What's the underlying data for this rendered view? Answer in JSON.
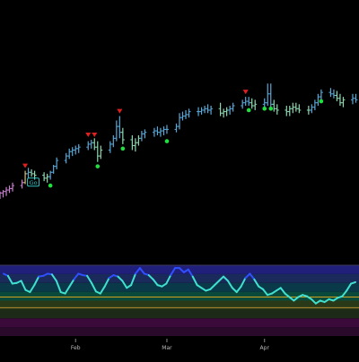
{
  "chart_data": [
    {
      "type": "ohlc",
      "title": "",
      "x_start": "2024-01-08",
      "x_end": "2024-05-01",
      "ylim": [
        0,
        100
      ],
      "y_axis_labels": "none",
      "grid": false,
      "bar_colors": {
        "up": "#5aa8d8",
        "down": "#8fd8b0",
        "weak": "#c880d0",
        "amber": "#d8c070"
      },
      "markers": {
        "sell_triangle_color": "#e02020",
        "buy_dot_color": "#20e040",
        "go_label": "Go",
        "go_label_color": "#30c0c0"
      },
      "series": [
        {
          "x": "2024-01-08",
          "o": 20,
          "h": 22,
          "l": 17,
          "c": 21,
          "color": "weak"
        },
        {
          "x": "2024-01-09",
          "o": 21,
          "h": 23,
          "l": 18,
          "c": 22,
          "color": "weak"
        },
        {
          "x": "2024-01-10",
          "o": 22,
          "h": 25,
          "l": 19,
          "c": 23,
          "color": "weak"
        },
        {
          "x": "2024-01-11",
          "o": 23,
          "h": 26,
          "l": 21,
          "c": 24,
          "color": "weak"
        },
        {
          "x": "2024-01-12",
          "o": 24,
          "h": 28,
          "l": 22,
          "c": 26,
          "color": "weak"
        },
        {
          "x": "2024-01-15",
          "o": 26,
          "h": 30,
          "l": 24,
          "c": 28,
          "color": "weak"
        },
        {
          "x": "2024-01-16",
          "o": 28,
          "h": 36,
          "l": 27,
          "c": 34,
          "color": "amber"
        },
        {
          "x": "2024-01-17",
          "o": 34,
          "h": 38,
          "l": 31,
          "c": 35,
          "color": "up"
        },
        {
          "x": "2024-01-18",
          "o": 35,
          "h": 37,
          "l": 32,
          "c": 34,
          "color": "down"
        },
        {
          "x": "2024-01-19",
          "o": 34,
          "h": 36,
          "l": 30,
          "c": 33,
          "color": "down"
        },
        {
          "x": "2024-01-22",
          "o": 33,
          "h": 35,
          "l": 29,
          "c": 31,
          "color": "down"
        },
        {
          "x": "2024-01-23",
          "o": 31,
          "h": 34,
          "l": 28,
          "c": 32,
          "color": "down"
        },
        {
          "x": "2024-01-24",
          "o": 32,
          "h": 36,
          "l": 30,
          "c": 35,
          "color": "up"
        },
        {
          "x": "2024-01-25",
          "o": 35,
          "h": 40,
          "l": 34,
          "c": 39,
          "color": "up"
        },
        {
          "x": "2024-01-26",
          "o": 39,
          "h": 45,
          "l": 37,
          "c": 43,
          "color": "up"
        },
        {
          "x": "2024-01-29",
          "o": 43,
          "h": 48,
          "l": 41,
          "c": 46,
          "color": "up"
        },
        {
          "x": "2024-01-30",
          "o": 46,
          "h": 51,
          "l": 44,
          "c": 49,
          "color": "up"
        },
        {
          "x": "2024-01-31",
          "o": 49,
          "h": 52,
          "l": 46,
          "c": 50,
          "color": "up"
        },
        {
          "x": "2024-02-01",
          "o": 50,
          "h": 53,
          "l": 47,
          "c": 51,
          "color": "up"
        },
        {
          "x": "2024-02-02",
          "o": 51,
          "h": 54,
          "l": 48,
          "c": 52,
          "color": "up"
        },
        {
          "x": "2024-02-05",
          "o": 52,
          "h": 56,
          "l": 50,
          "c": 54,
          "color": "up"
        },
        {
          "x": "2024-02-06",
          "o": 54,
          "h": 57,
          "l": 51,
          "c": 55,
          "color": "up"
        },
        {
          "x": "2024-02-07",
          "o": 55,
          "h": 58,
          "l": 50,
          "c": 52,
          "color": "down"
        },
        {
          "x": "2024-02-08",
          "o": 52,
          "h": 56,
          "l": 42,
          "c": 46,
          "color": "down"
        },
        {
          "x": "2024-02-09",
          "o": 46,
          "h": 53,
          "l": 44,
          "c": 50,
          "color": "down"
        },
        {
          "x": "2024-02-12",
          "o": 50,
          "h": 56,
          "l": 48,
          "c": 54,
          "color": "up"
        },
        {
          "x": "2024-02-13",
          "o": 54,
          "h": 60,
          "l": 52,
          "c": 58,
          "color": "up"
        },
        {
          "x": "2024-02-14",
          "o": 58,
          "h": 70,
          "l": 56,
          "c": 66,
          "color": "up"
        },
        {
          "x": "2024-02-15",
          "o": 66,
          "h": 73,
          "l": 58,
          "c": 62,
          "color": "up"
        },
        {
          "x": "2024-02-16",
          "o": 62,
          "h": 65,
          "l": 54,
          "c": 57,
          "color": "down"
        },
        {
          "x": "2024-02-19",
          "o": 57,
          "h": 60,
          "l": 50,
          "c": 53,
          "color": "down"
        },
        {
          "x": "2024-02-20",
          "o": 53,
          "h": 58,
          "l": 49,
          "c": 55,
          "color": "down"
        },
        {
          "x": "2024-02-21",
          "o": 55,
          "h": 60,
          "l": 53,
          "c": 58,
          "color": "down"
        },
        {
          "x": "2024-02-22",
          "o": 58,
          "h": 63,
          "l": 56,
          "c": 61,
          "color": "up"
        },
        {
          "x": "2024-02-23",
          "o": 61,
          "h": 64,
          "l": 58,
          "c": 62,
          "color": "up"
        },
        {
          "x": "2024-02-26",
          "o": 62,
          "h": 65,
          "l": 59,
          "c": 63,
          "color": "up"
        },
        {
          "x": "2024-02-27",
          "o": 63,
          "h": 66,
          "l": 60,
          "c": 62,
          "color": "up"
        },
        {
          "x": "2024-02-28",
          "o": 62,
          "h": 65,
          "l": 59,
          "c": 63,
          "color": "up"
        },
        {
          "x": "2024-02-29",
          "o": 63,
          "h": 66,
          "l": 60,
          "c": 64,
          "color": "up"
        },
        {
          "x": "2024-03-01",
          "o": 64,
          "h": 67,
          "l": 61,
          "c": 64,
          "color": "up"
        },
        {
          "x": "2024-03-04",
          "o": 64,
          "h": 68,
          "l": 62,
          "c": 66,
          "color": "up"
        },
        {
          "x": "2024-03-05",
          "o": 66,
          "h": 75,
          "l": 64,
          "c": 72,
          "color": "up"
        },
        {
          "x": "2024-03-06",
          "o": 72,
          "h": 76,
          "l": 70,
          "c": 73,
          "color": "up"
        },
        {
          "x": "2024-03-07",
          "o": 73,
          "h": 77,
          "l": 71,
          "c": 74,
          "color": "up"
        },
        {
          "x": "2024-03-08",
          "o": 74,
          "h": 78,
          "l": 72,
          "c": 76,
          "color": "up"
        },
        {
          "x": "2024-03-11",
          "o": 76,
          "h": 79,
          "l": 73,
          "c": 76,
          "color": "up"
        },
        {
          "x": "2024-03-12",
          "o": 76,
          "h": 79,
          "l": 74,
          "c": 77,
          "color": "up"
        },
        {
          "x": "2024-03-13",
          "o": 77,
          "h": 80,
          "l": 75,
          "c": 78,
          "color": "up"
        },
        {
          "x": "2024-03-14",
          "o": 78,
          "h": 81,
          "l": 75,
          "c": 77,
          "color": "up"
        },
        {
          "x": "2024-03-15",
          "o": 77,
          "h": 80,
          "l": 74,
          "c": 78,
          "color": "up"
        },
        {
          "x": "2024-03-18",
          "o": 78,
          "h": 82,
          "l": 73,
          "c": 75,
          "color": "down"
        },
        {
          "x": "2024-03-19",
          "o": 75,
          "h": 78,
          "l": 72,
          "c": 76,
          "color": "down"
        },
        {
          "x": "2024-03-20",
          "o": 76,
          "h": 79,
          "l": 73,
          "c": 77,
          "color": "down"
        },
        {
          "x": "2024-03-21",
          "o": 77,
          "h": 80,
          "l": 74,
          "c": 78,
          "color": "up"
        },
        {
          "x": "2024-03-22",
          "o": 78,
          "h": 82,
          "l": 76,
          "c": 80,
          "color": "up"
        },
        {
          "x": "2024-03-25",
          "o": 80,
          "h": 84,
          "l": 78,
          "c": 82,
          "color": "up"
        },
        {
          "x": "2024-03-26",
          "o": 82,
          "h": 86,
          "l": 80,
          "c": 83,
          "color": "up"
        },
        {
          "x": "2024-03-27",
          "o": 83,
          "h": 86,
          "l": 80,
          "c": 82,
          "color": "up"
        },
        {
          "x": "2024-03-28",
          "o": 82,
          "h": 85,
          "l": 78,
          "c": 80,
          "color": "down"
        },
        {
          "x": "2024-03-29",
          "o": 80,
          "h": 84,
          "l": 77,
          "c": 81,
          "color": "down"
        },
        {
          "x": "2024-04-01",
          "o": 81,
          "h": 85,
          "l": 79,
          "c": 82,
          "color": "up"
        },
        {
          "x": "2024-04-02",
          "o": 82,
          "h": 95,
          "l": 80,
          "c": 88,
          "color": "up"
        },
        {
          "x": "2024-04-03",
          "o": 88,
          "h": 95,
          "l": 78,
          "c": 81,
          "color": "up"
        },
        {
          "x": "2024-04-04",
          "o": 81,
          "h": 84,
          "l": 76,
          "c": 78,
          "color": "down"
        },
        {
          "x": "2024-04-05",
          "o": 78,
          "h": 81,
          "l": 74,
          "c": 77,
          "color": "down"
        },
        {
          "x": "2024-04-08",
          "o": 77,
          "h": 80,
          "l": 73,
          "c": 76,
          "color": "down"
        },
        {
          "x": "2024-04-09",
          "o": 76,
          "h": 80,
          "l": 73,
          "c": 78,
          "color": "down"
        },
        {
          "x": "2024-04-10",
          "o": 78,
          "h": 82,
          "l": 75,
          "c": 79,
          "color": "down"
        },
        {
          "x": "2024-04-11",
          "o": 79,
          "h": 82,
          "l": 76,
          "c": 78,
          "color": "down"
        },
        {
          "x": "2024-04-12",
          "o": 78,
          "h": 81,
          "l": 75,
          "c": 77,
          "color": "down"
        },
        {
          "x": "2024-04-15",
          "o": 77,
          "h": 80,
          "l": 74,
          "c": 77,
          "color": "down"
        },
        {
          "x": "2024-04-16",
          "o": 77,
          "h": 81,
          "l": 75,
          "c": 79,
          "color": "up"
        },
        {
          "x": "2024-04-17",
          "o": 79,
          "h": 84,
          "l": 77,
          "c": 82,
          "color": "up"
        },
        {
          "x": "2024-04-18",
          "o": 82,
          "h": 88,
          "l": 80,
          "c": 86,
          "color": "up"
        },
        {
          "x": "2024-04-19",
          "o": 86,
          "h": 91,
          "l": 84,
          "c": 89,
          "color": "up"
        },
        {
          "x": "2024-04-22",
          "o": 89,
          "h": 92,
          "l": 86,
          "c": 88,
          "color": "up"
        },
        {
          "x": "2024-04-23",
          "o": 88,
          "h": 91,
          "l": 85,
          "c": 87,
          "color": "up"
        },
        {
          "x": "2024-04-24",
          "o": 87,
          "h": 90,
          "l": 83,
          "c": 85,
          "color": "down"
        },
        {
          "x": "2024-04-25",
          "o": 85,
          "h": 88,
          "l": 80,
          "c": 82,
          "color": "down"
        },
        {
          "x": "2024-04-26",
          "o": 82,
          "h": 86,
          "l": 79,
          "c": 84,
          "color": "down"
        },
        {
          "x": "2024-04-29",
          "o": 84,
          "h": 88,
          "l": 81,
          "c": 85,
          "color": "up"
        },
        {
          "x": "2024-04-30",
          "o": 85,
          "h": 88,
          "l": 82,
          "c": 84,
          "color": "up"
        }
      ],
      "sell_signals": [
        {
          "x": "2024-01-16",
          "y": 39
        },
        {
          "x": "2024-02-05",
          "y": 60
        },
        {
          "x": "2024-02-07",
          "y": 60
        },
        {
          "x": "2024-02-15",
          "y": 76
        },
        {
          "x": "2024-03-26",
          "y": 89
        }
      ],
      "buy_signals": [
        {
          "x": "2024-01-24",
          "y": 26
        },
        {
          "x": "2024-02-08",
          "y": 39
        },
        {
          "x": "2024-02-16",
          "y": 51
        },
        {
          "x": "2024-03-01",
          "y": 56
        },
        {
          "x": "2024-03-27",
          "y": 77
        },
        {
          "x": "2024-04-01",
          "y": 78
        },
        {
          "x": "2024-04-03",
          "y": 78
        },
        {
          "x": "2024-04-19",
          "y": 83
        }
      ],
      "go_signals": [
        {
          "x": "2024-01-17",
          "y": 28
        }
      ]
    },
    {
      "type": "line",
      "title": "",
      "ylim": [
        0,
        100
      ],
      "band_colors": [
        "#2a0a2a",
        "#3a0a3a",
        "#1e2a18",
        "#2a3a18",
        "#0a4a3a",
        "#0a3a4a",
        "#1a2a5a",
        "#20207a"
      ],
      "reference_lines": [
        {
          "y": 55,
          "color": "#d0a020"
        },
        {
          "y": 40,
          "color": "#b08830"
        }
      ],
      "line_colors": {
        "high": "#3050ff",
        "mid": "#40e0d0"
      },
      "series": [
        {
          "name": "",
          "values": [
            88,
            85,
            74,
            75,
            78,
            65,
            62,
            72,
            84,
            85,
            88,
            87,
            78,
            62,
            60,
            70,
            80,
            88,
            86,
            85,
            75,
            63,
            60,
            70,
            82,
            86,
            84,
            78,
            68,
            72,
            88,
            96,
            88,
            86,
            80,
            72,
            70,
            74,
            86,
            96,
            96,
            90,
            94,
            84,
            72,
            68,
            64,
            66,
            72,
            78,
            84,
            78,
            68,
            62,
            70,
            82,
            88,
            80,
            70,
            66,
            58,
            60,
            64,
            68,
            60,
            55,
            50,
            55,
            58,
            56,
            52,
            46,
            50,
            48,
            52,
            50,
            54,
            56,
            64,
            74,
            76
          ]
        }
      ]
    }
  ],
  "x_axis": {
    "tick_labels": [
      "Feb",
      "Mar",
      "Apr"
    ],
    "tick_dates": [
      "2024-02-01",
      "2024-03-01",
      "2024-04-01"
    ]
  }
}
